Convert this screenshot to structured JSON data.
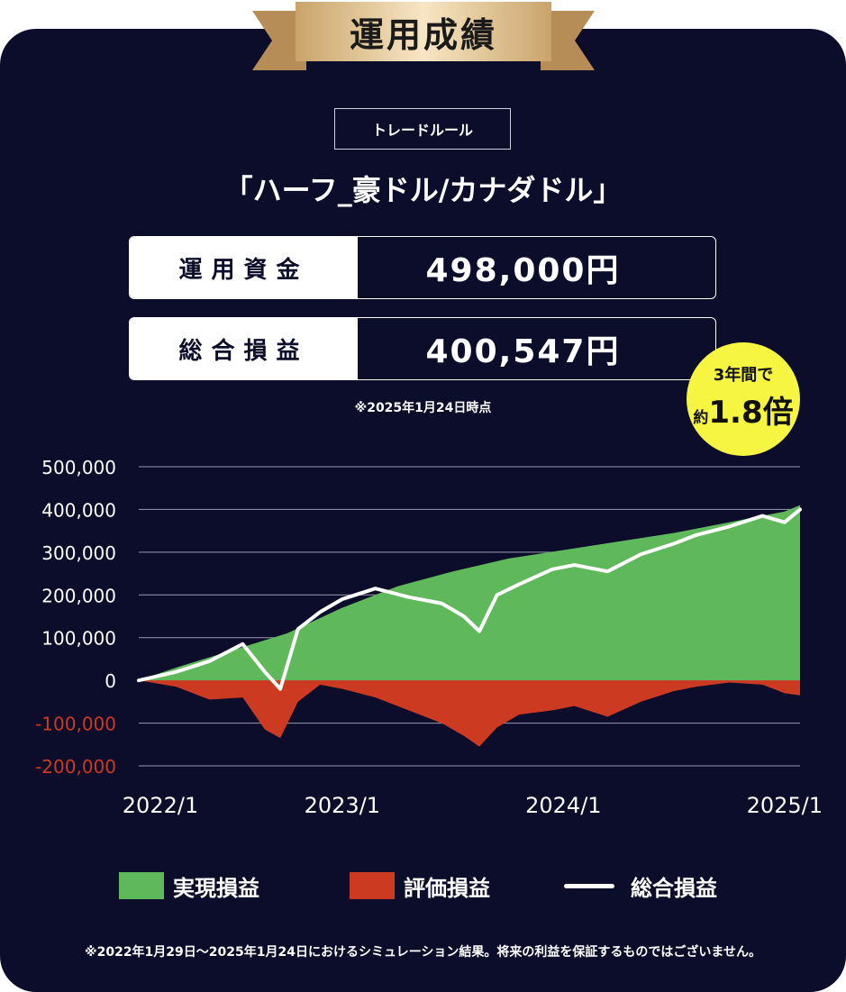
{
  "header": {
    "title": "運用成績"
  },
  "rule": {
    "tag": "トレードルール",
    "name": "「ハーフ_豪ドル/カナダドル」"
  },
  "stats": [
    {
      "label": "運用資金",
      "value": "498,000円"
    },
    {
      "label": "総合損益",
      "value": "400,547円"
    }
  ],
  "as_of": "※2025年1月24日時点",
  "badge": {
    "line1": "3年間で",
    "prefix": "約",
    "multiplier": "1.8倍"
  },
  "legend": [
    {
      "label": "実現損益",
      "color": "#5fb85a"
    },
    {
      "label": "評価損益",
      "color": "#cc3a22"
    },
    {
      "label": "総合損益",
      "color": "#ffffff"
    }
  ],
  "footnote": "※2022年1月29日〜2025年1月24日におけるシミュレーション結果。将来の利益を保証するものではございません。",
  "chart_data": {
    "type": "area",
    "yticks": [
      "500,000",
      "400,000",
      "300,000",
      "200,000",
      "100,000",
      "0",
      "-100,000",
      "-200,000"
    ],
    "xticks": [
      "2022/1",
      "2023/1",
      "2024/1",
      "2025/1"
    ],
    "ylim": [
      -200000,
      500000
    ],
    "xlim": [
      2022.08,
      2025.07
    ],
    "grid": true,
    "colors": {
      "realized": "#5fb85a",
      "unrealized": "#cc3a22",
      "total": "#ffffff",
      "grid": "#9a9ab0",
      "tick": "#ffffff",
      "neg_tick": "#cc3a22"
    },
    "series": [
      {
        "name": "実現損益",
        "x": [
          2022.08,
          2022.25,
          2022.5,
          2022.75,
          2023.0,
          2023.25,
          2023.5,
          2023.75,
          2024.0,
          2024.25,
          2024.5,
          2024.75,
          2025.0,
          2025.07
        ],
        "values": [
          0,
          30000,
          70000,
          110000,
          170000,
          220000,
          255000,
          285000,
          305000,
          325000,
          345000,
          370000,
          395000,
          410000
        ]
      },
      {
        "name": "評価損益",
        "x": [
          2022.08,
          2022.25,
          2022.4,
          2022.55,
          2022.65,
          2022.72,
          2022.8,
          2022.9,
          2023.0,
          2023.15,
          2023.3,
          2023.45,
          2023.55,
          2023.62,
          2023.7,
          2023.8,
          2023.95,
          2024.05,
          2024.2,
          2024.35,
          2024.5,
          2024.6,
          2024.75,
          2024.9,
          2025.0,
          2025.07
        ],
        "values": [
          0,
          -15000,
          -45000,
          -40000,
          -115000,
          -135000,
          -50000,
          -10000,
          -20000,
          -40000,
          -70000,
          -100000,
          -130000,
          -155000,
          -110000,
          -80000,
          -70000,
          -60000,
          -85000,
          -50000,
          -25000,
          -15000,
          -5000,
          -10000,
          -30000,
          -35000
        ]
      },
      {
        "name": "総合損益",
        "x": [
          2022.08,
          2022.25,
          2022.4,
          2022.55,
          2022.65,
          2022.72,
          2022.8,
          2022.9,
          2023.0,
          2023.15,
          2023.3,
          2023.45,
          2023.55,
          2023.62,
          2023.7,
          2023.8,
          2023.95,
          2024.05,
          2024.2,
          2024.35,
          2024.5,
          2024.6,
          2024.75,
          2024.9,
          2025.0,
          2025.07
        ],
        "values": [
          0,
          20000,
          45000,
          85000,
          20000,
          -20000,
          120000,
          160000,
          190000,
          215000,
          195000,
          180000,
          150000,
          115000,
          200000,
          225000,
          260000,
          270000,
          255000,
          295000,
          320000,
          340000,
          360000,
          385000,
          370000,
          400000
        ]
      }
    ]
  }
}
